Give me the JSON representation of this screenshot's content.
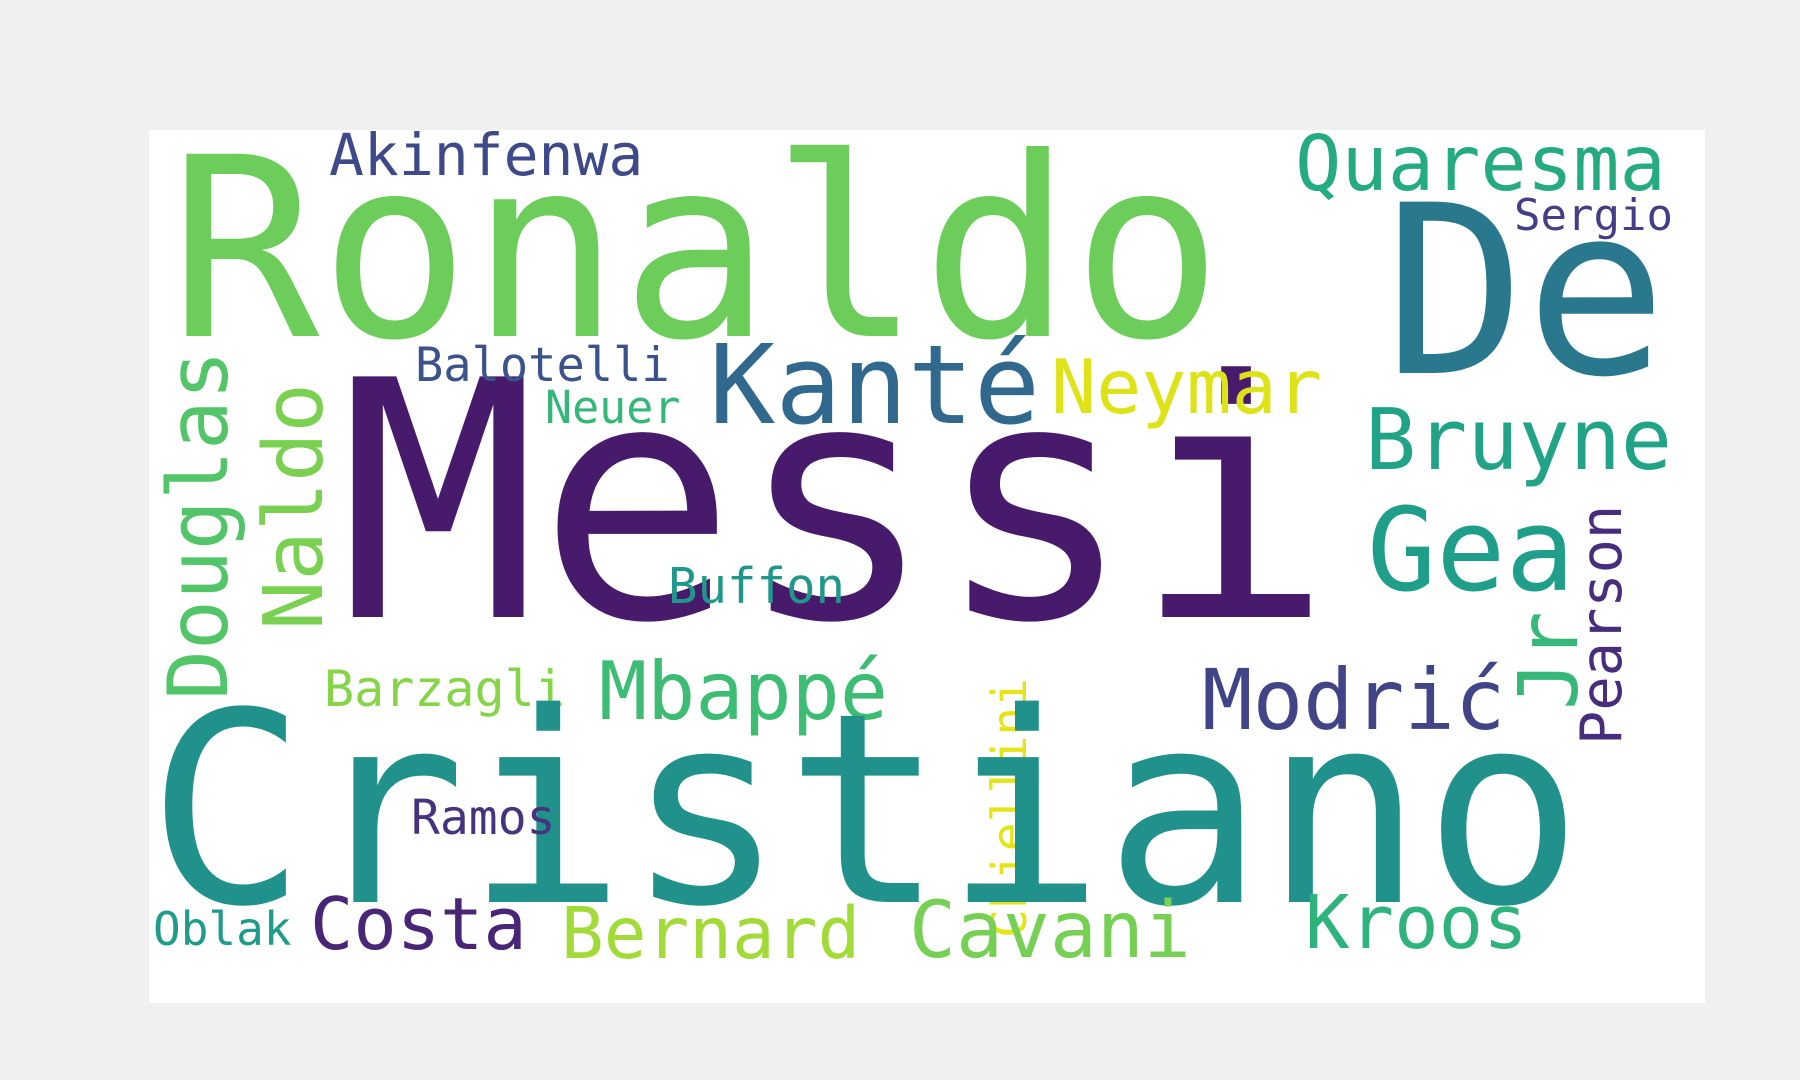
{
  "words": {
    "messi": {
      "text": "Messi",
      "color": "#481a6c"
    },
    "cristiano": {
      "text": "Cristiano",
      "color": "#21918c"
    },
    "ronaldo": {
      "text": "Ronaldo",
      "color": "#6ccd5a"
    },
    "de": {
      "text": "De",
      "color": "#2a788e"
    },
    "kante": {
      "text": "Kanté",
      "color": "#31688e"
    },
    "neymar": {
      "text": "Neymar",
      "color": "#dde318"
    },
    "bruyne": {
      "text": "Bruyne",
      "color": "#20a386"
    },
    "gea": {
      "text": "Gea",
      "color": "#1f9e89"
    },
    "quaresma": {
      "text": "Quaresma",
      "color": "#25ab82"
    },
    "akinfenwa": {
      "text": "Akinfenwa",
      "color": "#3e4989"
    },
    "sergio": {
      "text": "Sergio",
      "color": "#433e85"
    },
    "balotelli": {
      "text": "Balotelli",
      "color": "#3b528b"
    },
    "neuer": {
      "text": "Neuer",
      "color": "#35b779"
    },
    "douglas": {
      "text": "Douglas",
      "color": "#52c569"
    },
    "naldo": {
      "text": "Naldo",
      "color": "#7ad151"
    },
    "buffon": {
      "text": "Buffon",
      "color": "#1f988b"
    },
    "mbappe": {
      "text": "Mbappé",
      "color": "#3dbc74"
    },
    "modric": {
      "text": "Modrić",
      "color": "#414487"
    },
    "jr": {
      "text": "Jr",
      "color": "#37b878"
    },
    "pearson": {
      "text": "Pearson",
      "color": "#472d7b"
    },
    "barzagli": {
      "text": "Barzagli",
      "color": "#86d549"
    },
    "chiellini": {
      "text": "Chiellini",
      "color": "#e5e419"
    },
    "ramos": {
      "text": "Ramos",
      "color": "#46337e"
    },
    "oblak": {
      "text": "Oblak",
      "color": "#1e9c89"
    },
    "costa": {
      "text": "Costa",
      "color": "#482576"
    },
    "bernard": {
      "text": "Bernard",
      "color": "#a2da37"
    },
    "cavani": {
      "text": "Cavani",
      "color": "#75d054"
    },
    "kroos": {
      "text": "Kroos",
      "color": "#2eb37c"
    }
  }
}
